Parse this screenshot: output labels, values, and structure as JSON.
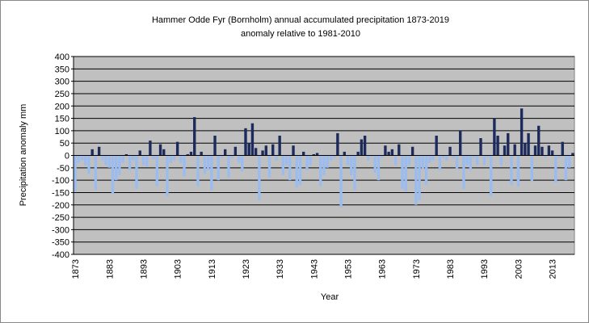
{
  "chart_data": {
    "type": "bar",
    "title": "Hammer Odde Fyr (Bornholm) annual  accumulated precipitation 1873-2019",
    "subtitle": "anomaly relative to 1981-2010",
    "x_label": "Year",
    "y_label": "Precipitation anomaly mm",
    "categories": [
      "1873",
      null,
      null,
      null,
      null,
      null,
      null,
      null,
      null,
      null,
      "1883",
      null,
      null,
      null,
      null,
      null,
      null,
      null,
      null,
      null,
      "1893",
      null,
      null,
      null,
      null,
      null,
      null,
      null,
      null,
      null,
      "1903",
      null,
      null,
      null,
      null,
      null,
      null,
      null,
      null,
      null,
      "1913",
      null,
      null,
      null,
      null,
      null,
      null,
      null,
      null,
      null,
      "1923",
      null,
      null,
      null,
      null,
      null,
      null,
      null,
      null,
      null,
      "1933",
      null,
      null,
      null,
      null,
      null,
      null,
      null,
      null,
      null,
      "1943",
      null,
      null,
      null,
      null,
      null,
      null,
      null,
      null,
      null,
      "1953",
      null,
      null,
      null,
      null,
      null,
      null,
      null,
      null,
      null,
      "1963",
      null,
      null,
      null,
      null,
      null,
      null,
      null,
      null,
      null,
      "1973",
      null,
      null,
      null,
      null,
      null,
      null,
      null,
      null,
      null,
      "1983",
      null,
      null,
      null,
      null,
      null,
      null,
      null,
      null,
      null,
      "1993",
      null,
      null,
      null,
      null,
      null,
      null,
      null,
      null,
      null,
      "2003",
      null,
      null,
      null,
      null,
      null,
      null,
      null,
      null,
      null,
      "2013",
      null,
      null,
      null,
      null,
      null,
      null
    ],
    "values": [
      -145,
      -30,
      -20,
      -40,
      -75,
      25,
      -140,
      35,
      -20,
      -40,
      -50,
      -155,
      -100,
      -80,
      -30,
      5,
      -60,
      -20,
      -135,
      20,
      -40,
      -45,
      60,
      -15,
      -125,
      45,
      25,
      -165,
      -30,
      -20,
      55,
      -30,
      -85,
      5,
      15,
      155,
      -125,
      15,
      -75,
      -60,
      -140,
      80,
      -100,
      -10,
      25,
      -90,
      -10,
      35,
      -30,
      -65,
      110,
      50,
      130,
      30,
      -180,
      20,
      40,
      -90,
      45,
      -20,
      80,
      -80,
      -40,
      -100,
      40,
      -130,
      -120,
      15,
      -60,
      -40,
      5,
      10,
      -125,
      -80,
      -50,
      -20,
      -10,
      90,
      -210,
      15,
      -40,
      -80,
      -140,
      15,
      65,
      80,
      -20,
      -5,
      -70,
      -100,
      -10,
      40,
      15,
      25,
      -40,
      45,
      -135,
      -145,
      -40,
      35,
      -200,
      -180,
      -55,
      -120,
      -30,
      -20,
      80,
      -60,
      -10,
      -20,
      35,
      -10,
      -55,
      100,
      -135,
      -40,
      -60,
      -10,
      -40,
      70,
      -40,
      -10,
      -165,
      150,
      80,
      -40,
      40,
      90,
      -120,
      45,
      -125,
      190,
      50,
      90,
      -105,
      40,
      120,
      35,
      -10,
      40,
      20,
      -110,
      -10,
      55,
      -100,
      -50,
      10
    ],
    "color": "#1c2b5c",
    "negative_color": "#9abcf0",
    "ylim": [
      -400,
      400
    ],
    "yticks": [
      -400,
      -350,
      -300,
      -250,
      -200,
      -150,
      -100,
      -50,
      0,
      50,
      100,
      150,
      200,
      250,
      300,
      350,
      400
    ],
    "grid": true
  }
}
